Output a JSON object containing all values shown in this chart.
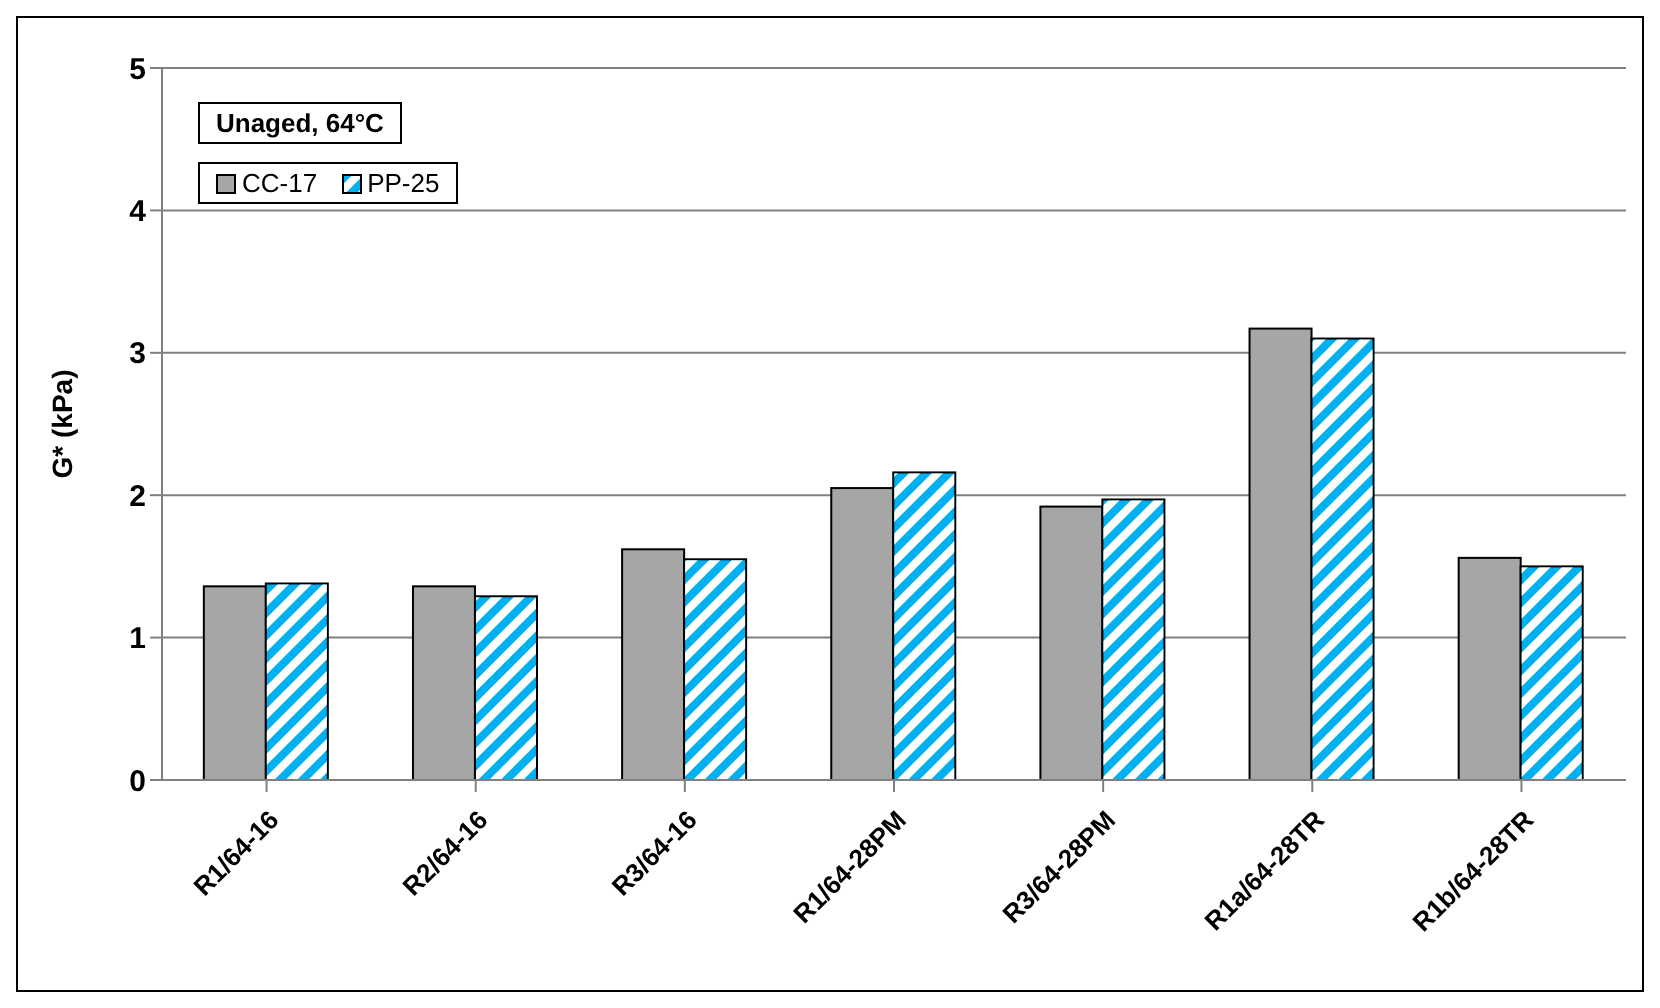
{
  "chart_data": {
    "type": "bar",
    "ylabel": "G* (kPa)",
    "annotations": [
      "Unaged, 64°C"
    ],
    "categories": [
      "R1/64-16",
      "R2/64-16",
      "R3/64-16",
      "R1/64-28PM",
      "R3/64-28PM",
      "R1a/64-28TR",
      "R1b/64-28TR"
    ],
    "series": [
      {
        "name": "CC-17",
        "color": "#a6a6a6",
        "values": [
          1.36,
          1.36,
          1.62,
          2.05,
          1.92,
          3.17,
          1.56
        ]
      },
      {
        "name": "PP-25",
        "color": "#00b0f0",
        "values": [
          1.38,
          1.29,
          1.55,
          2.16,
          1.97,
          3.1,
          1.5
        ]
      }
    ],
    "ylim": [
      0,
      5
    ],
    "yticks": [
      0,
      1,
      2,
      3,
      4,
      5
    ],
    "grid": "y",
    "legend": "top left"
  }
}
